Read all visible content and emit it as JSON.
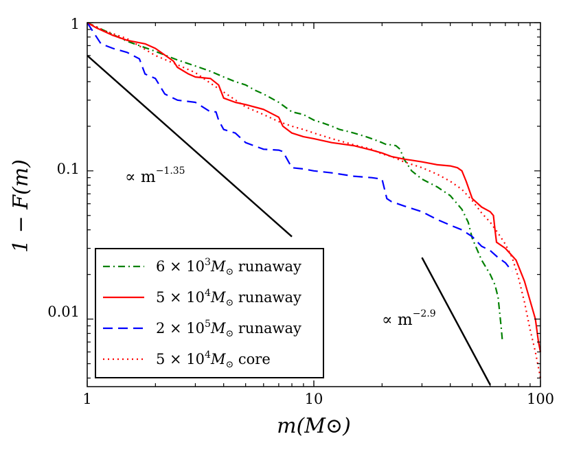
{
  "chart_data": {
    "type": "line",
    "xscale": "log",
    "yscale": "log",
    "xlim": [
      1,
      100
    ],
    "ylim": [
      0.0035,
      1
    ],
    "xlabel": "m(M⊙)",
    "ylabel": "1 − F(m)",
    "x_tick_labels": [
      "1",
      "10",
      "100"
    ],
    "y_tick_labels": [
      "0.01",
      "0.1",
      "1"
    ],
    "series": [
      {
        "name": "6 × 10³M⊙ runaway",
        "color": "#008000",
        "style": "dashdot",
        "x": [
          1.0,
          1.2,
          1.5,
          2.0,
          2.5,
          3.0,
          3.5,
          4.0,
          4.5,
          5.0,
          5.5,
          6.0,
          7.0,
          8.0,
          9.0,
          10.0,
          11.0,
          12.0,
          13.0,
          14.0,
          15.0,
          16.0,
          17.0,
          18.0,
          19.0,
          20.0,
          21.0,
          22.0,
          23.0,
          24.0,
          25.0,
          27.0,
          30.0,
          35.0,
          40.0,
          45.0,
          48.0,
          50.0,
          55.0,
          60.0,
          63.0,
          65.0,
          67.0,
          68.0
        ],
        "y": [
          1.0,
          0.88,
          0.75,
          0.64,
          0.56,
          0.51,
          0.47,
          0.43,
          0.4,
          0.38,
          0.35,
          0.33,
          0.29,
          0.25,
          0.24,
          0.22,
          0.21,
          0.2,
          0.19,
          0.185,
          0.18,
          0.175,
          0.17,
          0.165,
          0.16,
          0.155,
          0.15,
          0.15,
          0.148,
          0.14,
          0.12,
          0.1,
          0.088,
          0.078,
          0.068,
          0.055,
          0.045,
          0.035,
          0.025,
          0.02,
          0.017,
          0.014,
          0.009,
          0.007
        ]
      },
      {
        "name": "5 × 10⁴M⊙ runaway",
        "color": "#ff0000",
        "style": "solid",
        "x": [
          1.0,
          1.1,
          1.3,
          1.5,
          1.8,
          2.0,
          2.4,
          2.5,
          2.8,
          3.0,
          3.5,
          3.8,
          4.0,
          4.5,
          5.0,
          6.0,
          7.0,
          7.3,
          8.0,
          9.0,
          10.0,
          12.0,
          15.0,
          18.0,
          20.0,
          22.0,
          25.0,
          27.0,
          30.0,
          35.0,
          40.0,
          43.0,
          45.0,
          47.0,
          50.0,
          55.0,
          60.0,
          62.0,
          63.0,
          64.0,
          70.0,
          78.0,
          85.0,
          95.0,
          98.0,
          100.0
        ],
        "y": [
          1.0,
          0.92,
          0.82,
          0.76,
          0.72,
          0.67,
          0.55,
          0.5,
          0.45,
          0.43,
          0.42,
          0.38,
          0.31,
          0.29,
          0.28,
          0.26,
          0.23,
          0.2,
          0.18,
          0.17,
          0.165,
          0.155,
          0.148,
          0.138,
          0.132,
          0.125,
          0.12,
          0.118,
          0.115,
          0.11,
          0.108,
          0.105,
          0.1,
          0.085,
          0.065,
          0.057,
          0.053,
          0.05,
          0.04,
          0.033,
          0.03,
          0.025,
          0.018,
          0.01,
          0.007,
          0.006
        ]
      },
      {
        "name": "2 × 10⁵M⊙ runaway",
        "color": "#0000ff",
        "style": "dashed",
        "x": [
          1.0,
          1.15,
          1.3,
          1.5,
          1.7,
          1.8,
          2.0,
          2.2,
          2.5,
          3.0,
          3.5,
          3.7,
          3.8,
          4.0,
          4.5,
          5.0,
          6.0,
          7.0,
          7.3,
          8.0,
          9.0,
          10.0,
          12.0,
          15.0,
          18.0,
          20.0,
          21.0,
          22.0,
          25.0,
          30.0,
          35.0,
          40.0,
          45.0,
          50.0,
          55.0,
          60.0,
          65.0,
          70.0,
          75.0
        ],
        "y": [
          1.0,
          0.72,
          0.67,
          0.63,
          0.57,
          0.45,
          0.42,
          0.33,
          0.3,
          0.29,
          0.25,
          0.25,
          0.22,
          0.19,
          0.18,
          0.155,
          0.14,
          0.138,
          0.135,
          0.105,
          0.103,
          0.1,
          0.097,
          0.092,
          0.09,
          0.088,
          0.065,
          0.062,
          0.058,
          0.053,
          0.047,
          0.043,
          0.04,
          0.036,
          0.031,
          0.029,
          0.026,
          0.024,
          0.021
        ]
      },
      {
        "name": "5 × 10⁴M⊙ core",
        "color": "#ff0000",
        "style": "dotted",
        "x": [
          1.0,
          1.2,
          1.5,
          2.0,
          2.5,
          3.0,
          3.5,
          4.0,
          5.0,
          6.0,
          7.0,
          8.0,
          9.0,
          10.0,
          12.0,
          15.0,
          18.0,
          20.0,
          22.0,
          25.0,
          30.0,
          35.0,
          40.0,
          45.0,
          50.0,
          55.0,
          60.0,
          65.0,
          70.0,
          75.0,
          80.0,
          85.0,
          90.0,
          95.0,
          100.0
        ],
        "y": [
          1.0,
          0.88,
          0.78,
          0.6,
          0.52,
          0.46,
          0.39,
          0.34,
          0.27,
          0.24,
          0.215,
          0.2,
          0.19,
          0.18,
          0.165,
          0.15,
          0.14,
          0.13,
          0.125,
          0.115,
          0.105,
          0.095,
          0.085,
          0.075,
          0.063,
          0.052,
          0.045,
          0.038,
          0.032,
          0.026,
          0.019,
          0.013,
          0.0085,
          0.006,
          0.004
        ]
      }
    ],
    "reference_lines": [
      {
        "label": "∝ m",
        "exponent_label": "−1.35",
        "x": [
          1.0,
          8.0
        ],
        "y": [
          0.6,
          0.036
        ]
      },
      {
        "label": "∝ m",
        "exponent_label": "−2.9",
        "x": [
          30.0,
          60.0
        ],
        "y": [
          0.026,
          0.0036
        ]
      }
    ],
    "legend": {
      "placement": "lower-left",
      "entries": [
        {
          "prefix": "6 × 10",
          "exp": "3",
          "suffix": " runaway",
          "color": "#008000",
          "style": "dashdot"
        },
        {
          "prefix": "5 × 10",
          "exp": "4",
          "suffix": " runaway",
          "color": "#ff0000",
          "style": "solid"
        },
        {
          "prefix": "2 × 10",
          "exp": "5",
          "suffix": " runaway",
          "color": "#0000ff",
          "style": "dashed"
        },
        {
          "prefix": "5 × 10",
          "exp": "4",
          "suffix": " core",
          "color": "#ff0000",
          "style": "dotted"
        }
      ],
      "mass_symbol": "M",
      "sun_symbol": "⊙"
    }
  }
}
